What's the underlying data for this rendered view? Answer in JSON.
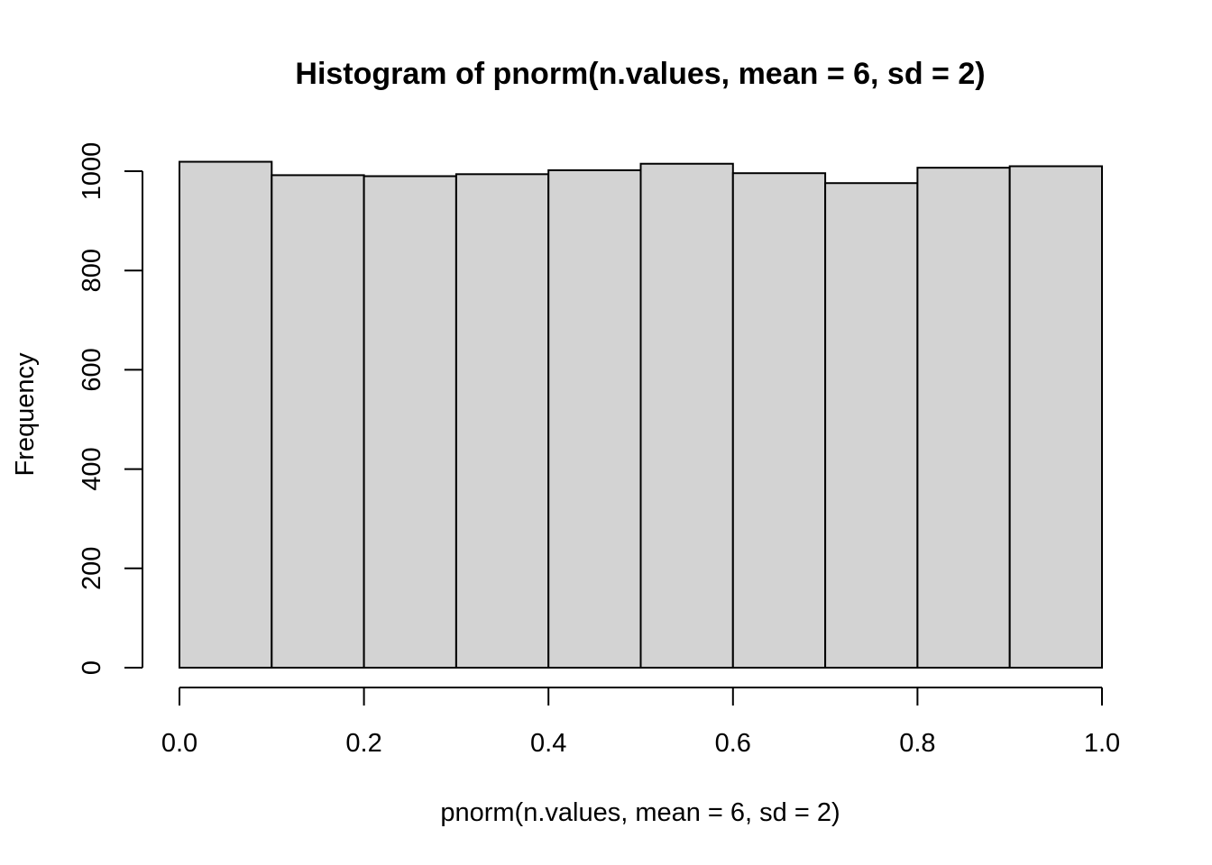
{
  "chart_data": {
    "type": "bar",
    "title": "Histogram of pnorm(n.values, mean = 6, sd = 2)",
    "xlabel": "pnorm(n.values, mean = 6, sd = 2)",
    "ylabel": "Frequency",
    "bin_edges": [
      0.0,
      0.1,
      0.2,
      0.3,
      0.4,
      0.5,
      0.6,
      0.7,
      0.8,
      0.9,
      1.0
    ],
    "values": [
      1019,
      992,
      990,
      994,
      1002,
      1015,
      996,
      976,
      1007,
      1010
    ],
    "xlim": [
      0.0,
      1.0
    ],
    "ylim": [
      0,
      1000
    ],
    "x_ticks": [
      0.0,
      0.2,
      0.4,
      0.6,
      0.8,
      1.0
    ],
    "x_tick_labels": [
      "0.0",
      "0.2",
      "0.4",
      "0.6",
      "0.8",
      "1.0"
    ],
    "y_ticks": [
      0,
      200,
      400,
      600,
      800,
      1000
    ],
    "y_tick_labels": [
      "0",
      "200",
      "400",
      "600",
      "800",
      "1000"
    ],
    "grid": false,
    "bar_fill": "#d3d3d3",
    "bar_border": "#000000"
  }
}
